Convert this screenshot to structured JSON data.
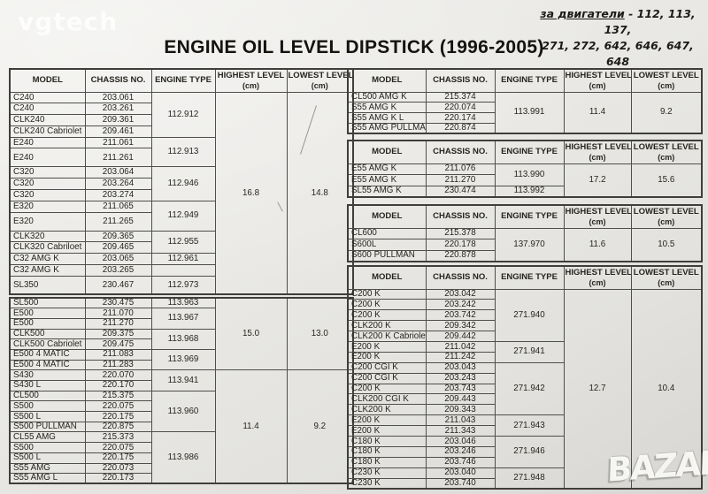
{
  "title": "ENGINE OIL LEVEL DIPSTICK (1996-2005)",
  "watermarks": {
    "top": "vgtech",
    "bottom": "BAZAR"
  },
  "note": {
    "label": "за двигатели",
    "line1_rest": " - 112, 113, 137,",
    "line2": "271, 272, 642, 646, 647, 648"
  },
  "columns": [
    {
      "key": "model",
      "label": "MODEL"
    },
    {
      "key": "chassis",
      "label": "CHASSIS NO."
    },
    {
      "key": "engine",
      "label": "ENGINE TYPE"
    },
    {
      "key": "highest",
      "label": "HIGHEST LEVEL",
      "unit": "(cm)"
    },
    {
      "key": "lowest",
      "label": "LOWEST LEVEL",
      "unit": "(cm)"
    }
  ],
  "tables": {
    "l1": {
      "header": true,
      "rows": [
        {
          "m": "C240",
          "c": "203.061",
          "e": {
            "t": "112.912",
            "rs": 4
          },
          "h": {
            "t": "16.8",
            "rs": 16
          },
          "l": {
            "t": "14.8",
            "rs": 16
          }
        },
        {
          "m": "C240",
          "c": "203.261"
        },
        {
          "m": "CLK240",
          "c": "209.361"
        },
        {
          "m": "CLK240 Cabriolet",
          "c": "209.461"
        },
        {
          "m": "E240",
          "c": "211.061",
          "e": {
            "t": "112.913",
            "rs": 2
          }
        },
        {
          "m": "E240",
          "c": "211.261",
          "tall": true
        },
        {
          "m": "C320",
          "c": "203.064",
          "e": {
            "t": "112.946",
            "rs": 3
          }
        },
        {
          "m": "C320",
          "c": "203.264"
        },
        {
          "m": "C320",
          "c": "203.274"
        },
        {
          "m": "E320",
          "c": "211.065",
          "e": {
            "t": "112.949",
            "rs": 2
          }
        },
        {
          "m": "E320",
          "c": "211.265",
          "tall": true
        },
        {
          "m": "CLK320",
          "c": "209.365",
          "e": {
            "t": "112.955",
            "rs": 2
          }
        },
        {
          "m": "CLK320 Cabriloet",
          "c": "209.465"
        },
        {
          "m": "C32 AMG K",
          "c": "203.065",
          "e": {
            "t": "112.961",
            "rs": 1
          }
        },
        {
          "m": "C32 AMG K",
          "c": "203.265",
          "e": {
            "t": "",
            "rs": 1
          }
        },
        {
          "m": "SL350",
          "c": "230.467",
          "e": {
            "t": "112.973",
            "rs": 1
          },
          "tall": true
        }
      ]
    },
    "l2": {
      "header": false,
      "rows": [
        {
          "m": "SL500",
          "c": "230.475",
          "e": {
            "t": "113.963",
            "rs": 1
          },
          "h": {
            "t": "15.0",
            "rs": 7
          },
          "l": {
            "t": "13.0",
            "rs": 7
          }
        },
        {
          "m": "E500",
          "c": "211.070",
          "e": {
            "t": "113.967",
            "rs": 2
          }
        },
        {
          "m": "E500",
          "c": "211.270"
        },
        {
          "m": "CLK500",
          "c": "209.375",
          "e": {
            "t": "113.968",
            "rs": 2
          }
        },
        {
          "m": "CLK500 Cabriolet",
          "c": "209.475"
        },
        {
          "m": "E500 4 MATIC",
          "c": "211.083",
          "e": {
            "t": "113.969",
            "rs": 2
          }
        },
        {
          "m": "E500 4 MATIC",
          "c": "211.283"
        },
        {
          "m": "S430",
          "c": "220.070",
          "e": {
            "t": "113.941",
            "rs": 2
          },
          "h": {
            "t": "11.4",
            "rs": 11
          },
          "l": {
            "t": "9.2",
            "rs": 11
          }
        },
        {
          "m": "S430 L",
          "c": "220.170"
        },
        {
          "m": "CL500",
          "c": "215.375",
          "e": {
            "t": "113.960",
            "rs": 4
          }
        },
        {
          "m": "S500",
          "c": "220.075"
        },
        {
          "m": "S500 L",
          "c": "220.175"
        },
        {
          "m": "S500 PULLMAN",
          "c": "220.875"
        },
        {
          "m": "CL55 AMG",
          "c": "215.373",
          "e": {
            "t": "113.986",
            "rs": 5
          }
        },
        {
          "m": "S500",
          "c": "220.075"
        },
        {
          "m": "S500 L",
          "c": "220.175"
        },
        {
          "m": "S55 AMG",
          "c": "220.073"
        },
        {
          "m": "S55 AMG L",
          "c": "220.173"
        }
      ]
    },
    "r1": {
      "header": true,
      "rows": [
        {
          "m": "CL500 AMG K",
          "c": "215.374",
          "e": {
            "t": "113.991",
            "rs": 4
          },
          "h": {
            "t": "11.4",
            "rs": 4
          },
          "l": {
            "t": "9.2",
            "rs": 4
          }
        },
        {
          "m": "S55 AMG K",
          "c": "220.074"
        },
        {
          "m": "S55 AMG K L",
          "c": "220.174"
        },
        {
          "m": "S55 AMG PULLMAN",
          "c": "220.874"
        }
      ]
    },
    "r2": {
      "header": true,
      "rows": [
        {
          "m": "E55 AMG K",
          "c": "211.076",
          "e": {
            "t": "113.990",
            "rs": 2
          },
          "h": {
            "t": "17.2",
            "rs": 3
          },
          "l": {
            "t": "15.6",
            "rs": 3
          }
        },
        {
          "m": "E55 AMG K",
          "c": "211.270"
        },
        {
          "m": "SL55 AMG K",
          "c": "230.474",
          "e": {
            "t": "113.992",
            "rs": 1
          }
        }
      ]
    },
    "r3": {
      "header": true,
      "rows": [
        {
          "m": "CL600",
          "c": "215.378",
          "e": {
            "t": "137.970",
            "rs": 3
          },
          "h": {
            "t": "11.6",
            "rs": 3
          },
          "l": {
            "t": "10.5",
            "rs": 3
          }
        },
        {
          "m": "S600L",
          "c": "220.178"
        },
        {
          "m": "S600 PULLMAN",
          "c": "220.878"
        }
      ]
    },
    "r4": {
      "header": true,
      "rows": [
        {
          "m": "C200 K",
          "c": "203.042",
          "e": {
            "t": "271.940",
            "rs": 5
          },
          "h": {
            "t": "12.7",
            "rs": 19
          },
          "l": {
            "t": "10.4",
            "rs": 19
          }
        },
        {
          "m": "C200 K",
          "c": "203.242"
        },
        {
          "m": "C200 K",
          "c": "203.742"
        },
        {
          "m": "CLK200 K",
          "c": "209.342"
        },
        {
          "m": "CLK200 K Cabriolet",
          "c": "209.442"
        },
        {
          "m": "E200 K",
          "c": "211.042",
          "e": {
            "t": "271.941",
            "rs": 2
          }
        },
        {
          "m": "E200 K",
          "c": "211.242"
        },
        {
          "m": "C200 CGI K",
          "c": "203.043",
          "e": {
            "t": "271.942",
            "rs": 5
          }
        },
        {
          "m": "C200 CGI K",
          "c": "203.243"
        },
        {
          "m": "C200 K",
          "c": "203.743"
        },
        {
          "m": "CLK200 CGI K",
          "c": "209.443"
        },
        {
          "m": "CLK200 K",
          "c": "209.343"
        },
        {
          "m": "E200 K",
          "c": "211.043",
          "e": {
            "t": "271.943",
            "rs": 2
          }
        },
        {
          "m": "E200 K",
          "c": "211.343"
        },
        {
          "m": "C180 K",
          "c": "203.046",
          "e": {
            "t": "271.946",
            "rs": 3
          }
        },
        {
          "m": "C180 K",
          "c": "203.246"
        },
        {
          "m": "C180 K",
          "c": "203.746"
        },
        {
          "m": "C230 K",
          "c": "203.040",
          "e": {
            "t": "271.948",
            "rs": 2
          }
        },
        {
          "m": "C230 K",
          "c": "203.740"
        }
      ]
    }
  }
}
